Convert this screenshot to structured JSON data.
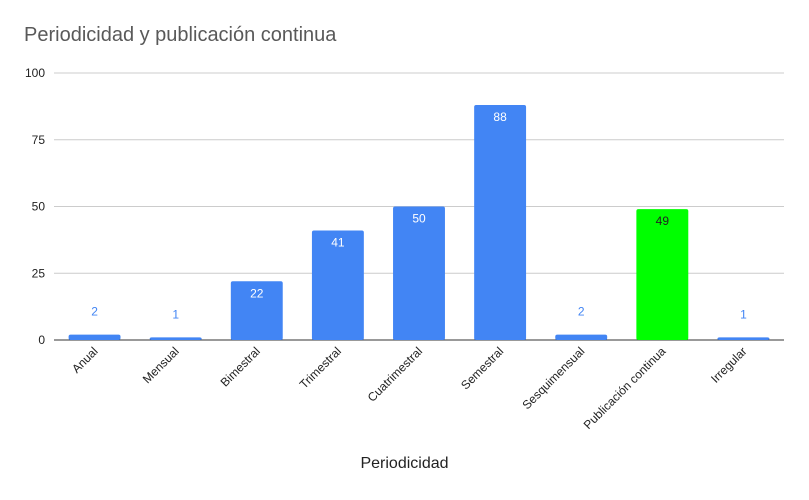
{
  "chart_data": {
    "type": "bar",
    "title": "Periodicidad y publicación continua",
    "xlabel": "Periodicidad",
    "ylabel": "",
    "ylim": [
      0,
      100
    ],
    "yticks": [
      "0",
      "25",
      "50",
      "75",
      "100"
    ],
    "grid": true,
    "categories": [
      "Anual",
      "Mensual",
      "Bimestral",
      "Trimestral",
      "Cuatrimestral",
      "Semestral",
      "Sesquimensual",
      "Publicación continua",
      "Irregular"
    ],
    "values": [
      2,
      1,
      22,
      41,
      50,
      88,
      2,
      49,
      1
    ],
    "colors": [
      "#4285f4",
      "#4285f4",
      "#4285f4",
      "#4285f4",
      "#4285f4",
      "#4285f4",
      "#4285f4",
      "#00ff00",
      "#4285f4"
    ]
  }
}
